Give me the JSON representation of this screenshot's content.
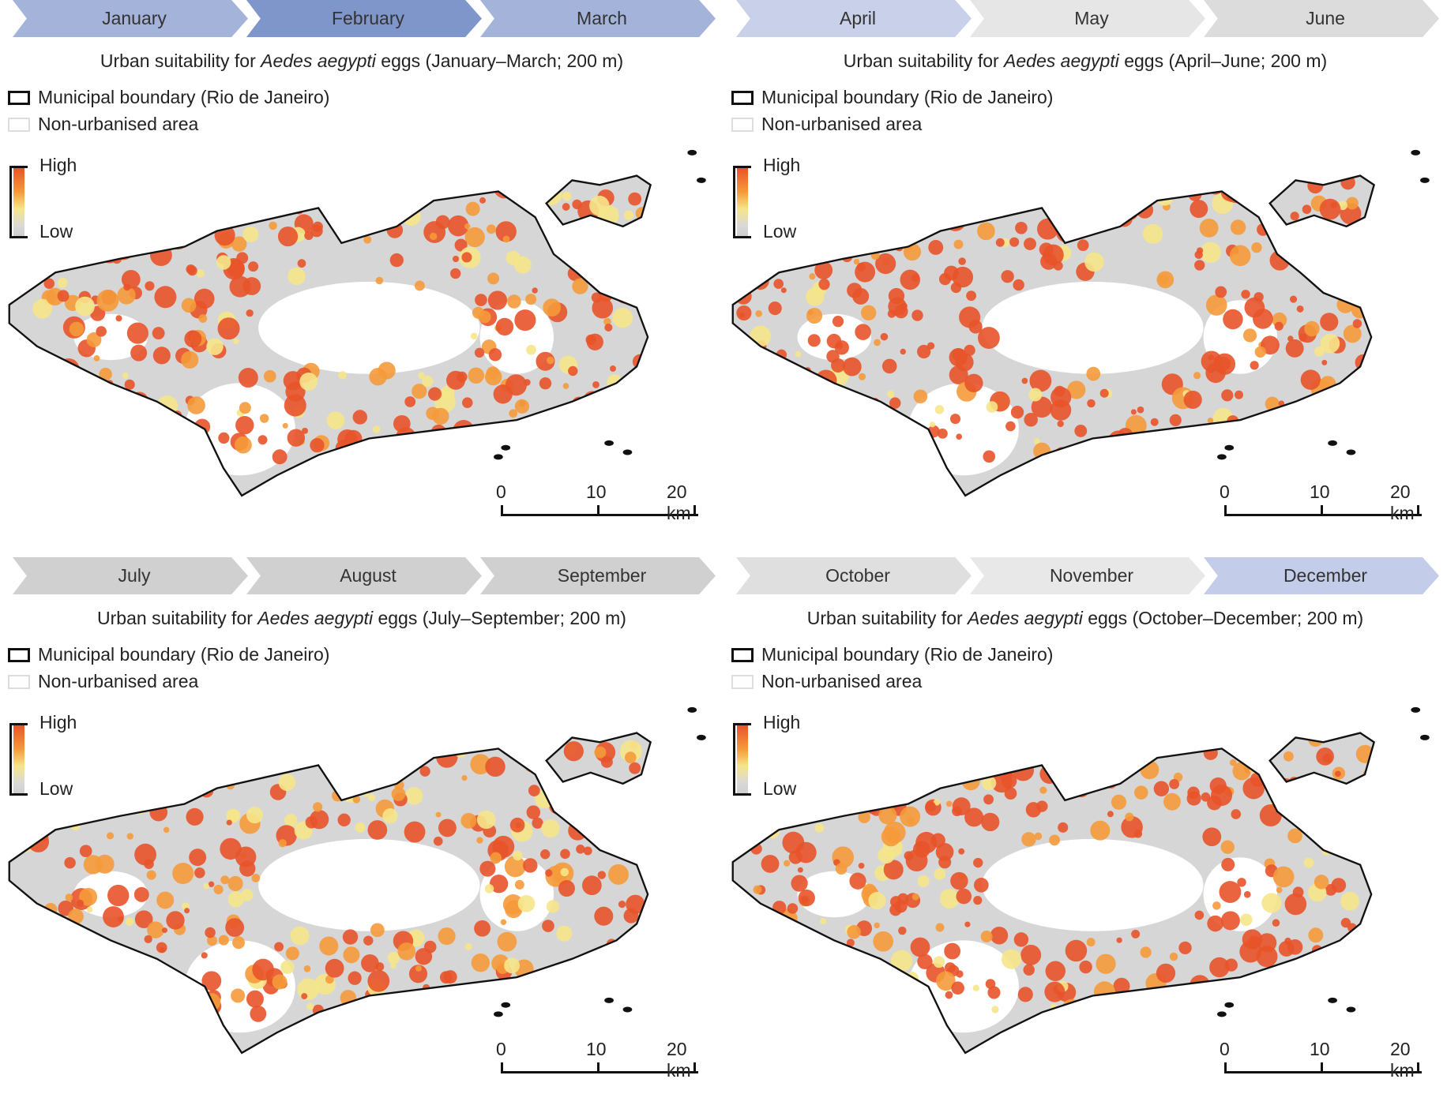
{
  "colors": {
    "high": "#e8542a",
    "mid": "#f59a3a",
    "low_yellow": "#f6e58a",
    "low": "#d4d4d4",
    "boundary": "#111111"
  },
  "panels": [
    {
      "months": [
        {
          "label": "January",
          "color": "#a4b3d9"
        },
        {
          "label": "February",
          "color": "#7f96cb"
        },
        {
          "label": "March",
          "color": "#a4b3d9"
        }
      ],
      "title_pre": "Urban suitability for ",
      "title_species": "Aedes aegypti",
      "title_post": " eggs (January–March; 200 m)",
      "seed": 3,
      "intensity": 0.55
    },
    {
      "months": [
        {
          "label": "April",
          "color": "#c9d0ea"
        },
        {
          "label": "May",
          "color": "#e6e6e6"
        },
        {
          "label": "June",
          "color": "#dcdcdc"
        }
      ],
      "title_pre": "Urban suitability for ",
      "title_species": "Aedes aegypti",
      "title_post": " eggs (April–June; 200 m)",
      "seed": 7,
      "intensity": 0.65
    },
    {
      "months": [
        {
          "label": "July",
          "color": "#d0d0d0"
        },
        {
          "label": "August",
          "color": "#d0d0d0"
        },
        {
          "label": "September",
          "color": "#d0d0d0"
        }
      ],
      "title_pre": "Urban suitability for ",
      "title_species": "Aedes aegypti",
      "title_post": " eggs (July–September; 200 m)",
      "seed": 11,
      "intensity": 0.55
    },
    {
      "months": [
        {
          "label": "October",
          "color": "#dfdfdf"
        },
        {
          "label": "November",
          "color": "#e8e8e8"
        },
        {
          "label": "December",
          "color": "#c3cce8"
        }
      ],
      "title_pre": "Urban suitability for ",
      "title_species": "Aedes aegypti",
      "title_post": " eggs (October–December; 200 m)",
      "seed": 19,
      "intensity": 0.6
    }
  ],
  "legend": {
    "boundary": "Municipal boundary (Rio de Janeiro)",
    "non_urban": "Non-urbanised area",
    "high": "High",
    "low": "Low"
  },
  "scale": {
    "t0": "0",
    "t1": "10",
    "t2": "20 km"
  }
}
